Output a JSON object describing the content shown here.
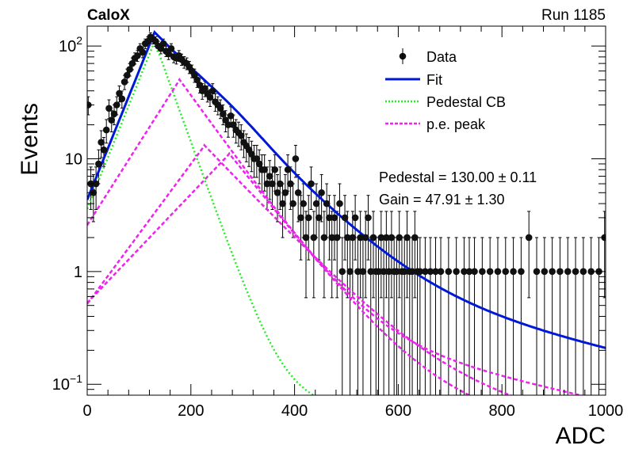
{
  "header": {
    "experiment": "CaloX",
    "run": "Run 1185"
  },
  "chart_data": {
    "type": "scatter",
    "xlabel": "ADC",
    "ylabel": "Events",
    "xlim": [
      0,
      1000
    ],
    "ylim": [
      0.08,
      150
    ],
    "yscale": "log",
    "x_ticks": [
      "0",
      "200",
      "400",
      "600",
      "800",
      "1000"
    ],
    "y_ticks": [
      {
        "value": 0.1,
        "base": "10",
        "exp": "−1"
      },
      {
        "value": 1,
        "base": "1",
        "exp": ""
      },
      {
        "value": 10,
        "base": "10",
        "exp": ""
      },
      {
        "value": 100,
        "base": "10",
        "exp": "2"
      }
    ],
    "legend": {
      "placement": "top-right",
      "entries": [
        {
          "label": "Data",
          "style": "marker"
        },
        {
          "label": "Fit",
          "style": "solid",
          "color": "#0018d8"
        },
        {
          "label": "Pedestal CB",
          "style": "dotted",
          "color": "#22ee22"
        },
        {
          "label": "p.e. peak",
          "style": "dashed",
          "color": "#ee22ee"
        }
      ]
    },
    "annotations": {
      "pedestal": "Pedestal = 130.00 ± 0.11",
      "gain": "Gain = 47.91 ± 1.30"
    },
    "fit_params": {
      "pedestal": 130.0,
      "gain": 47.91
    },
    "colors": {
      "data": "#111111",
      "fit": "#0018d8",
      "pedestal": "#22ee22",
      "pe": "#ee22ee"
    },
    "data_points": [
      {
        "x": 2,
        "y": 30
      },
      {
        "x": 7,
        "y": 6
      },
      {
        "x": 12,
        "y": 5
      },
      {
        "x": 17,
        "y": 6
      },
      {
        "x": 22,
        "y": 9
      },
      {
        "x": 27,
        "y": 14
      },
      {
        "x": 32,
        "y": 12
      },
      {
        "x": 37,
        "y": 18
      },
      {
        "x": 42,
        "y": 28
      },
      {
        "x": 47,
        "y": 22
      },
      {
        "x": 52,
        "y": 25
      },
      {
        "x": 57,
        "y": 30
      },
      {
        "x": 62,
        "y": 38
      },
      {
        "x": 67,
        "y": 34
      },
      {
        "x": 72,
        "y": 48
      },
      {
        "x": 77,
        "y": 55
      },
      {
        "x": 82,
        "y": 62
      },
      {
        "x": 87,
        "y": 70
      },
      {
        "x": 92,
        "y": 78
      },
      {
        "x": 97,
        "y": 82
      },
      {
        "x": 102,
        "y": 95
      },
      {
        "x": 107,
        "y": 88
      },
      {
        "x": 112,
        "y": 105
      },
      {
        "x": 117,
        "y": 110
      },
      {
        "x": 122,
        "y": 120
      },
      {
        "x": 127,
        "y": 115
      },
      {
        "x": 132,
        "y": 110
      },
      {
        "x": 137,
        "y": 100
      },
      {
        "x": 142,
        "y": 95
      },
      {
        "x": 147,
        "y": 105
      },
      {
        "x": 152,
        "y": 90
      },
      {
        "x": 157,
        "y": 85
      },
      {
        "x": 162,
        "y": 95
      },
      {
        "x": 167,
        "y": 80
      },
      {
        "x": 172,
        "y": 78
      },
      {
        "x": 177,
        "y": 82
      },
      {
        "x": 182,
        "y": 76
      },
      {
        "x": 187,
        "y": 72
      },
      {
        "x": 192,
        "y": 70
      },
      {
        "x": 197,
        "y": 65
      },
      {
        "x": 202,
        "y": 60
      },
      {
        "x": 207,
        "y": 55
      },
      {
        "x": 212,
        "y": 50
      },
      {
        "x": 217,
        "y": 45
      },
      {
        "x": 222,
        "y": 40
      },
      {
        "x": 227,
        "y": 42
      },
      {
        "x": 232,
        "y": 38
      },
      {
        "x": 237,
        "y": 35
      },
      {
        "x": 242,
        "y": 40
      },
      {
        "x": 247,
        "y": 32
      },
      {
        "x": 252,
        "y": 30
      },
      {
        "x": 257,
        "y": 28
      },
      {
        "x": 262,
        "y": 25
      },
      {
        "x": 267,
        "y": 22
      },
      {
        "x": 272,
        "y": 20
      },
      {
        "x": 277,
        "y": 24
      },
      {
        "x": 282,
        "y": 20
      },
      {
        "x": 287,
        "y": 18
      },
      {
        "x": 292,
        "y": 17
      },
      {
        "x": 297,
        "y": 16
      },
      {
        "x": 302,
        "y": 14
      },
      {
        "x": 307,
        "y": 13
      },
      {
        "x": 312,
        "y": 12
      },
      {
        "x": 317,
        "y": 11
      },
      {
        "x": 322,
        "y": 10
      },
      {
        "x": 327,
        "y": 10
      },
      {
        "x": 332,
        "y": 9
      },
      {
        "x": 337,
        "y": 8
      },
      {
        "x": 342,
        "y": 8
      },
      {
        "x": 347,
        "y": 6
      },
      {
        "x": 352,
        "y": 7
      },
      {
        "x": 357,
        "y": 6
      },
      {
        "x": 362,
        "y": 8
      },
      {
        "x": 367,
        "y": 5
      },
      {
        "x": 372,
        "y": 6
      },
      {
        "x": 377,
        "y": 4
      },
      {
        "x": 382,
        "y": 5
      },
      {
        "x": 387,
        "y": 8
      },
      {
        "x": 392,
        "y": 6
      },
      {
        "x": 397,
        "y": 4
      },
      {
        "x": 402,
        "y": 10
      },
      {
        "x": 407,
        "y": 5
      },
      {
        "x": 412,
        "y": 3
      },
      {
        "x": 417,
        "y": 4
      },
      {
        "x": 422,
        "y": 2
      },
      {
        "x": 427,
        "y": 3
      },
      {
        "x": 432,
        "y": 6
      },
      {
        "x": 437,
        "y": 2
      },
      {
        "x": 442,
        "y": 4
      },
      {
        "x": 447,
        "y": 3
      },
      {
        "x": 452,
        "y": 5
      },
      {
        "x": 457,
        "y": 2
      },
      {
        "x": 462,
        "y": 4
      },
      {
        "x": 467,
        "y": 3
      },
      {
        "x": 472,
        "y": 2
      },
      {
        "x": 477,
        "y": 3
      },
      {
        "x": 482,
        "y": 2
      },
      {
        "x": 487,
        "y": 4
      },
      {
        "x": 492,
        "y": 1
      },
      {
        "x": 497,
        "y": 3
      },
      {
        "x": 502,
        "y": 2
      },
      {
        "x": 507,
        "y": 1
      },
      {
        "x": 512,
        "y": 2
      },
      {
        "x": 517,
        "y": 3
      },
      {
        "x": 522,
        "y": 1
      },
      {
        "x": 527,
        "y": 2
      },
      {
        "x": 532,
        "y": 1
      },
      {
        "x": 537,
        "y": 2
      },
      {
        "x": 542,
        "y": 3
      },
      {
        "x": 547,
        "y": 1
      },
      {
        "x": 552,
        "y": 2
      },
      {
        "x": 557,
        "y": 1
      },
      {
        "x": 562,
        "y": 1
      },
      {
        "x": 567,
        "y": 2
      },
      {
        "x": 572,
        "y": 1
      },
      {
        "x": 577,
        "y": 2
      },
      {
        "x": 582,
        "y": 1
      },
      {
        "x": 587,
        "y": 2
      },
      {
        "x": 592,
        "y": 1
      },
      {
        "x": 597,
        "y": 1
      },
      {
        "x": 602,
        "y": 2
      },
      {
        "x": 607,
        "y": 1
      },
      {
        "x": 612,
        "y": 1
      },
      {
        "x": 617,
        "y": 2
      },
      {
        "x": 622,
        "y": 1
      },
      {
        "x": 627,
        "y": 1
      },
      {
        "x": 632,
        "y": 2
      },
      {
        "x": 637,
        "y": 1
      },
      {
        "x": 642,
        "y": 1
      },
      {
        "x": 652,
        "y": 1
      },
      {
        "x": 662,
        "y": 1
      },
      {
        "x": 672,
        "y": 1
      },
      {
        "x": 682,
        "y": 1
      },
      {
        "x": 697,
        "y": 1
      },
      {
        "x": 712,
        "y": 1
      },
      {
        "x": 727,
        "y": 1
      },
      {
        "x": 737,
        "y": 1
      },
      {
        "x": 747,
        "y": 1
      },
      {
        "x": 762,
        "y": 1
      },
      {
        "x": 777,
        "y": 1
      },
      {
        "x": 792,
        "y": 1
      },
      {
        "x": 807,
        "y": 1
      },
      {
        "x": 822,
        "y": 1
      },
      {
        "x": 837,
        "y": 1
      },
      {
        "x": 852,
        "y": 2
      },
      {
        "x": 867,
        "y": 1
      },
      {
        "x": 882,
        "y": 1
      },
      {
        "x": 897,
        "y": 1
      },
      {
        "x": 912,
        "y": 1
      },
      {
        "x": 927,
        "y": 1
      },
      {
        "x": 942,
        "y": 1
      },
      {
        "x": 957,
        "y": 1
      },
      {
        "x": 972,
        "y": 1
      },
      {
        "x": 987,
        "y": 1
      },
      {
        "x": 998,
        "y": 2
      }
    ]
  }
}
